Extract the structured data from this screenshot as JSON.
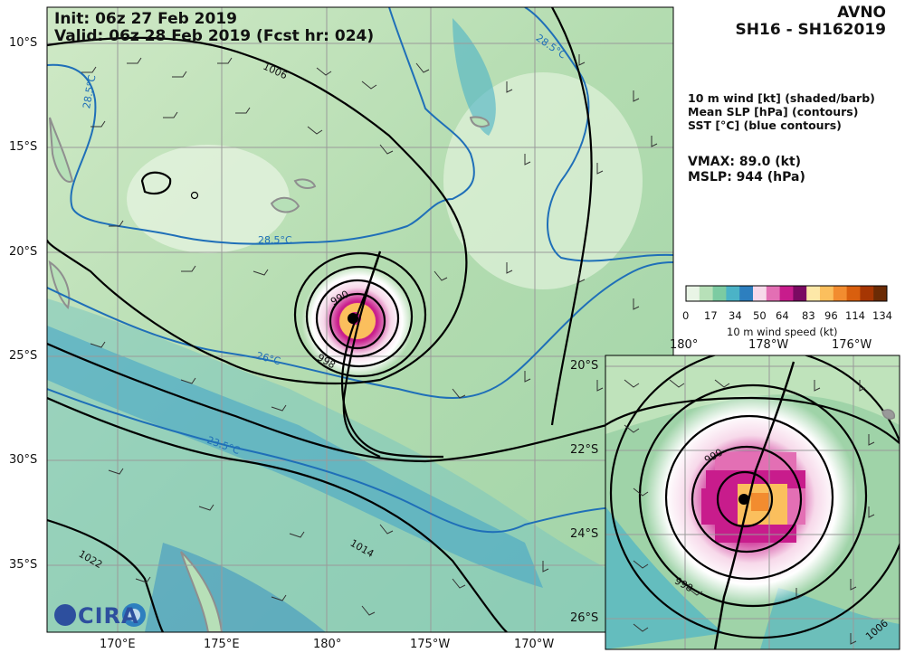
{
  "header": {
    "init": "Init:  06z 27 Feb 2019",
    "valid": "Valid: 06z 28 Feb 2019 (Fcst hr: 024)",
    "model": "AVNO",
    "storm": "SH16 - SH162019"
  },
  "legend": {
    "line1": "10 m wind [kt] (shaded/barb)",
    "line2": "Mean SLP [hPa] (contours)",
    "line3": "SST [°C] (blue contours)"
  },
  "stats": {
    "vmax": "VMAX:  89.0 (kt)",
    "mslp": "MSLP:  944 (hPa)"
  },
  "colorbar": {
    "ticks": [
      "0",
      "17",
      "34",
      "50",
      "64",
      "83",
      "96",
      "114",
      "134"
    ],
    "label": "10 m wind speed (kt)",
    "colors": [
      "#e9f5e6",
      "#b7e0b8",
      "#7ccba2",
      "#4bb3c7",
      "#2d7fbf",
      "#f7d9ea",
      "#e36fb4",
      "#c81c8c",
      "#7b0a62",
      "#fde8a8",
      "#fbbf5d",
      "#f28c2f",
      "#d95f0e",
      "#a63603",
      "#6b2b05"
    ]
  },
  "main_map": {
    "lat_labels": [
      "10°S",
      "15°S",
      "20°S",
      "25°S",
      "30°S",
      "35°S"
    ],
    "lon_labels": [
      "170°E",
      "175°E",
      "180°",
      "175°W",
      "170°W"
    ],
    "slp_labels": [
      "1006",
      "990",
      "998",
      "1014",
      "1022"
    ],
    "sst_labels": [
      "28.5°C",
      "28.5°C",
      "28.5°C",
      "26°C",
      "23.5°C"
    ]
  },
  "inset_map": {
    "lat_labels": [
      "20°S",
      "22°S",
      "24°S",
      "26°S"
    ],
    "lon_labels": [
      "180°",
      "178°W",
      "176°W"
    ],
    "slp_labels": [
      "990",
      "998",
      "1006"
    ]
  },
  "logo": {
    "text": "CIRA"
  }
}
